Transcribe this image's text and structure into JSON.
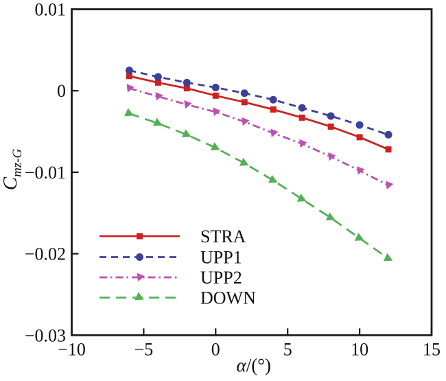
{
  "figure": {
    "background": "#ffffff",
    "frame_color": "#1a1a1a"
  },
  "chart_data": {
    "type": "line",
    "title": "",
    "xlabel_italic": "α",
    "xlabel_rest": "/(°)",
    "ylabel_main": "C",
    "ylabel_sub": "mz-G",
    "xlim": [
      -10,
      15
    ],
    "ylim": [
      -0.03,
      0.01
    ],
    "grid": false,
    "legend_position": "lower-left-inside",
    "xticks": [
      -10,
      -5,
      0,
      5,
      10,
      15
    ],
    "xtick_labels": [
      "−10",
      "−5",
      "0",
      "5",
      "10",
      "15"
    ],
    "yticks": [
      0.01,
      0,
      -0.01,
      -0.02,
      -0.03
    ],
    "ytick_labels": [
      "0.01",
      "0",
      "−0.01",
      "−0.02",
      "−0.03"
    ],
    "x": [
      -6,
      -4,
      -2,
      0,
      2,
      4,
      6,
      8,
      10,
      12
    ],
    "series": [
      {
        "name": "STRA",
        "color": "#cc2222",
        "line_style": "solid",
        "marker": "square",
        "values": [
          0.0018,
          0.001,
          0.0003,
          -0.0006,
          -0.0014,
          -0.0023,
          -0.0033,
          -0.0044,
          -0.0057,
          -0.0072
        ]
      },
      {
        "name": "UPP1",
        "color": "#3c4197",
        "line_style": "dashed",
        "marker": "circle",
        "values": [
          0.0025,
          0.0017,
          0.001,
          0.0004,
          -0.0003,
          -0.0011,
          -0.0021,
          -0.0031,
          -0.0042,
          -0.0054
        ]
      },
      {
        "name": "UPP2",
        "color": "#bd50b0",
        "line_style": "dash-dot",
        "marker": "triangle-down",
        "values": [
          0.0003,
          -0.0007,
          -0.0017,
          -0.0026,
          -0.0038,
          -0.0052,
          -0.0065,
          -0.0081,
          -0.0098,
          -0.0116
        ]
      },
      {
        "name": "DOWN",
        "color": "#55b055",
        "line_style": "long-dash",
        "marker": "triangle-right",
        "values": [
          -0.0028,
          -0.004,
          -0.0054,
          -0.007,
          -0.0089,
          -0.011,
          -0.0133,
          -0.0156,
          -0.0181,
          -0.0206
        ]
      }
    ]
  }
}
